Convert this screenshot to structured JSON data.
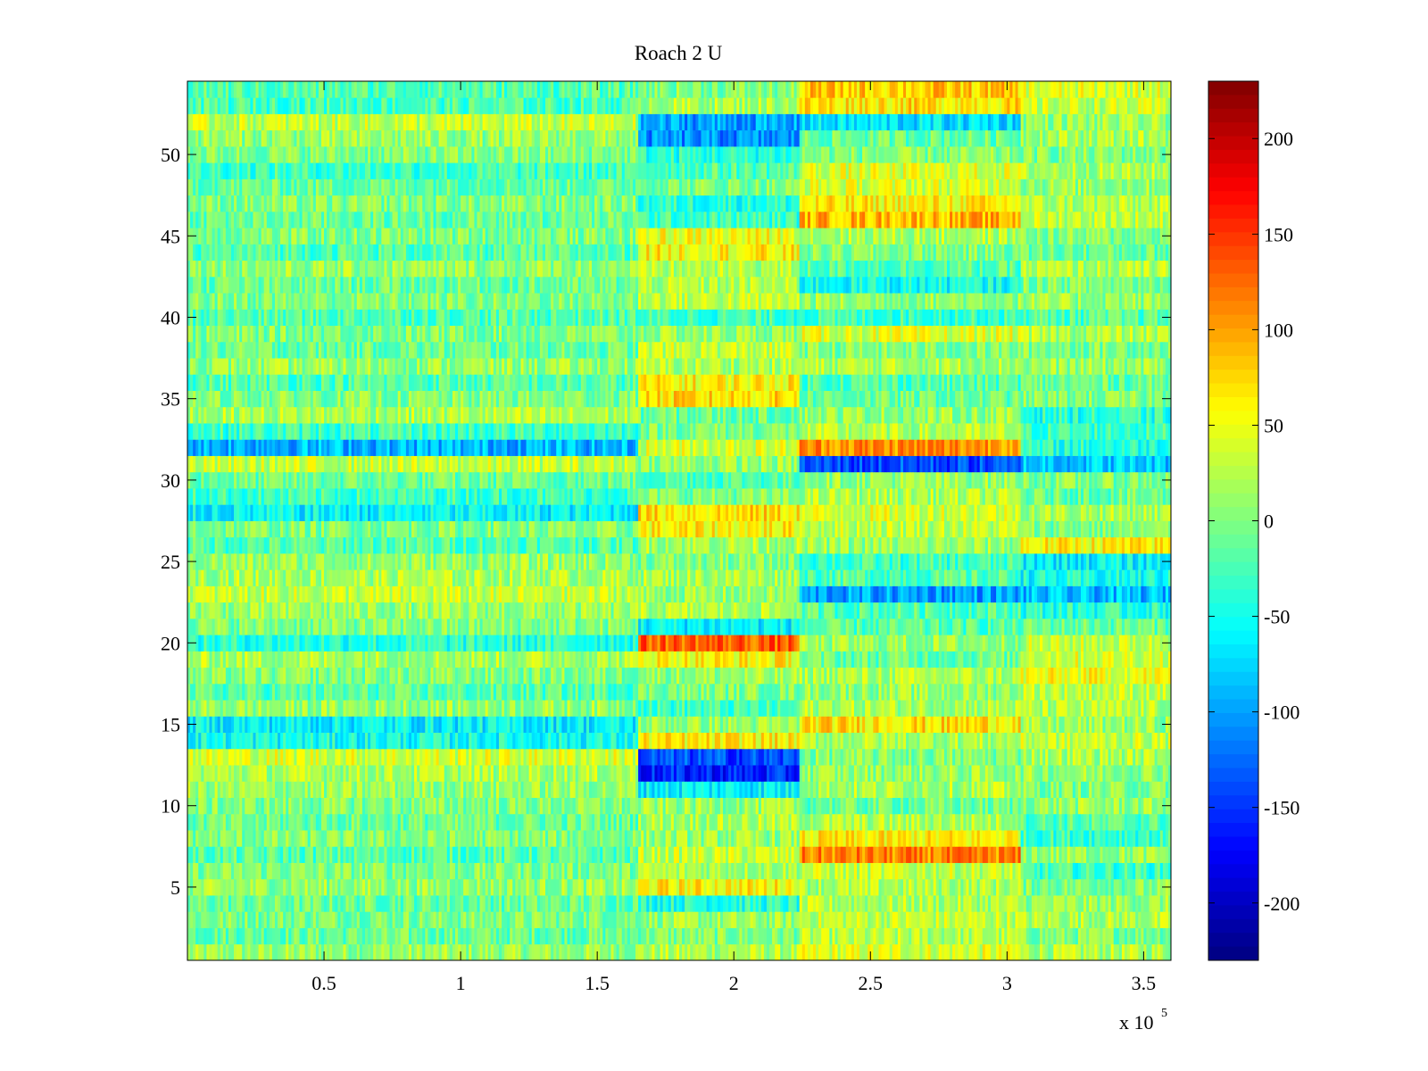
{
  "chart_data": {
    "type": "heatmap",
    "title": "Roach 2 U",
    "xlabel": "",
    "ylabel": "",
    "x_multiplier_label": "x 10",
    "x_multiplier_exponent": "5",
    "xlim": [
      0,
      360000
    ],
    "ylim": [
      0.5,
      54.5
    ],
    "rows": 54,
    "colormap": "jet",
    "clim": [
      -230,
      230
    ],
    "x_ticks": [
      {
        "value": 50000,
        "label": "0.5"
      },
      {
        "value": 100000,
        "label": "1"
      },
      {
        "value": 150000,
        "label": "1.5"
      },
      {
        "value": 200000,
        "label": "2"
      },
      {
        "value": 250000,
        "label": "2.5"
      },
      {
        "value": 300000,
        "label": "3"
      },
      {
        "value": 350000,
        "label": "3.5"
      }
    ],
    "y_ticks": [
      {
        "value": 5,
        "label": "5"
      },
      {
        "value": 10,
        "label": "10"
      },
      {
        "value": 15,
        "label": "15"
      },
      {
        "value": 20,
        "label": "20"
      },
      {
        "value": 25,
        "label": "25"
      },
      {
        "value": 30,
        "label": "30"
      },
      {
        "value": 35,
        "label": "35"
      },
      {
        "value": 40,
        "label": "40"
      },
      {
        "value": 45,
        "label": "45"
      },
      {
        "value": 50,
        "label": "50"
      }
    ],
    "colorbar_ticks": [
      {
        "value": 200,
        "label": "200"
      },
      {
        "value": 150,
        "label": "150"
      },
      {
        "value": 100,
        "label": "100"
      },
      {
        "value": 50,
        "label": "50"
      },
      {
        "value": 0,
        "label": "0"
      },
      {
        "value": -50,
        "label": "-50"
      },
      {
        "value": -100,
        "label": "-100"
      },
      {
        "value": -150,
        "label": "-150"
      },
      {
        "value": -200,
        "label": "-200"
      }
    ],
    "segment_boundaries": [
      0,
      165000,
      224000,
      305000,
      360000
    ],
    "row_segment_means": {
      "54": [
        -20,
        0,
        80,
        40
      ],
      "53": [
        -25,
        20,
        70,
        30
      ],
      "52": [
        30,
        -100,
        -70,
        10
      ],
      "51": [
        10,
        -110,
        -10,
        20
      ],
      "50": [
        0,
        -40,
        0,
        0
      ],
      "49": [
        -30,
        -20,
        40,
        20
      ],
      "48": [
        -10,
        0,
        40,
        10
      ],
      "47": [
        0,
        -40,
        60,
        20
      ],
      "46": [
        -10,
        -30,
        90,
        30
      ],
      "45": [
        0,
        50,
        20,
        0
      ],
      "44": [
        -20,
        60,
        0,
        -10
      ],
      "43": [
        10,
        20,
        -20,
        20
      ],
      "42": [
        -10,
        20,
        -50,
        0
      ],
      "41": [
        0,
        30,
        10,
        10
      ],
      "40": [
        -20,
        -30,
        -30,
        -20
      ],
      "39": [
        0,
        10,
        40,
        20
      ],
      "38": [
        -10,
        30,
        0,
        0
      ],
      "37": [
        10,
        20,
        20,
        10
      ],
      "36": [
        -20,
        60,
        -20,
        -10
      ],
      "35": [
        0,
        70,
        -10,
        0
      ],
      "34": [
        20,
        -10,
        10,
        -40
      ],
      "33": [
        -30,
        0,
        20,
        -30
      ],
      "32": [
        -90,
        40,
        110,
        -40
      ],
      "31": [
        30,
        10,
        -140,
        -80
      ],
      "30": [
        -10,
        -20,
        10,
        0
      ],
      "29": [
        -30,
        0,
        20,
        -10
      ],
      "28": [
        -60,
        70,
        40,
        20
      ],
      "27": [
        0,
        60,
        30,
        0
      ],
      "26": [
        -20,
        20,
        10,
        60
      ],
      "25": [
        10,
        0,
        -30,
        -60
      ],
      "24": [
        20,
        20,
        -20,
        -50
      ],
      "23": [
        30,
        10,
        -100,
        -90
      ],
      "22": [
        10,
        20,
        -20,
        -40
      ],
      "21": [
        0,
        -60,
        -20,
        -10
      ],
      "20": [
        -40,
        130,
        10,
        30
      ],
      "19": [
        20,
        60,
        -10,
        40
      ],
      "18": [
        0,
        10,
        20,
        50
      ],
      "17": [
        -20,
        0,
        10,
        30
      ],
      "16": [
        10,
        -30,
        20,
        20
      ],
      "15": [
        -60,
        10,
        70,
        10
      ],
      "14": [
        -50,
        60,
        20,
        30
      ],
      "13": [
        40,
        -140,
        0,
        20
      ],
      "12": [
        20,
        -160,
        10,
        10
      ],
      "11": [
        10,
        -60,
        20,
        0
      ],
      "10": [
        0,
        10,
        -10,
        10
      ],
      "9": [
        -10,
        20,
        20,
        -20
      ],
      "8": [
        0,
        10,
        60,
        -30
      ],
      "7": [
        -20,
        30,
        110,
        10
      ],
      "6": [
        0,
        20,
        30,
        -30
      ],
      "5": [
        10,
        60,
        20,
        0
      ],
      "4": [
        -10,
        -40,
        20,
        10
      ],
      "3": [
        0,
        10,
        30,
        20
      ],
      "2": [
        -10,
        0,
        20,
        0
      ],
      "1": [
        10,
        20,
        40,
        20
      ]
    }
  }
}
